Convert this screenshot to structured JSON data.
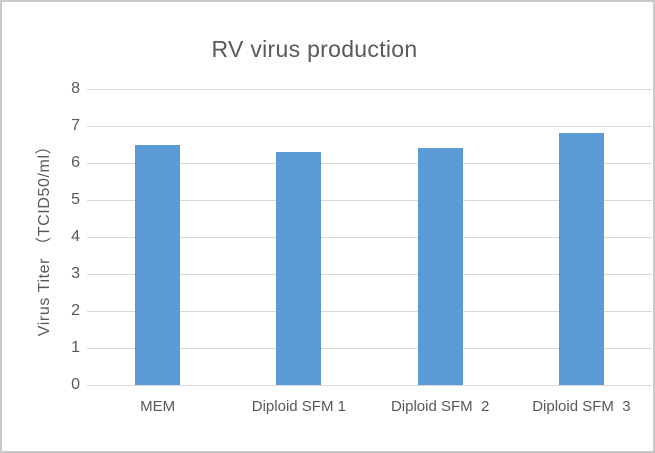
{
  "window": {
    "background": "#ffffff",
    "border_color": "#c9c9c9"
  },
  "chart_data": {
    "type": "bar",
    "title": "RV virus production",
    "categories": [
      "MEM",
      "Diploid SFM 1",
      "Diploid SFM  2",
      "Diploid SFM  3"
    ],
    "values": [
      6.5,
      6.3,
      6.4,
      6.8
    ],
    "xlabel": "",
    "ylabel": "Virus Titer （TCID50/ml）",
    "ylim": [
      0,
      8
    ],
    "yticks": [
      0,
      1,
      2,
      3,
      4,
      5,
      6,
      7,
      8
    ],
    "grid": "horizontal",
    "legend": "none",
    "bar_color": "#5b9bd5",
    "gridline_color": "#d9d9d9",
    "text_color": "#595959"
  }
}
